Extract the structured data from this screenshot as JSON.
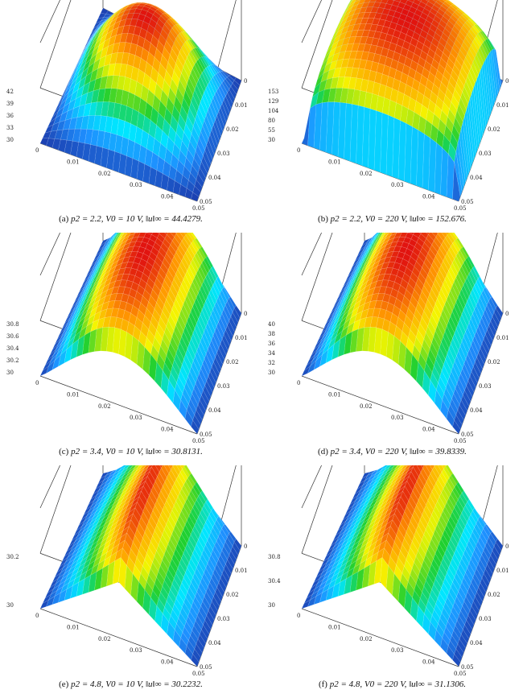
{
  "figure": {
    "panels": [
      {
        "id": "a",
        "caption_prefix": "(a)",
        "caption_math": "p2 = 2.2, V0 = 10 V, ‖u‖∞ = 44.4279.",
        "p2": 2.2,
        "V0_volts": 10,
        "u_inf_norm": 44.4279,
        "shape": "dome",
        "z_ticks": [
          "42",
          "39",
          "36",
          "33",
          "30"
        ],
        "x_ticks": [
          "0",
          "0.01",
          "0.02",
          "0.03",
          "0.04",
          "0.05"
        ],
        "y_ticks": [
          "0",
          "0.01",
          "0.02",
          "0.03",
          "0.04",
          "0.05"
        ]
      },
      {
        "id": "b",
        "caption_prefix": "(b)",
        "caption_math": "p2 = 2.2, V0 = 220 V, ‖u‖∞ = 152.676.",
        "p2": 2.2,
        "V0_volts": 220,
        "u_inf_norm": 152.676,
        "shape": "flat-top",
        "z_ticks": [
          "153",
          "129",
          "104",
          "80",
          "55",
          "30"
        ],
        "x_ticks": [
          "0",
          "0.01",
          "0.02",
          "0.03",
          "0.04",
          "0.05"
        ],
        "y_ticks": [
          "0",
          "0.01",
          "0.02",
          "0.03",
          "0.04",
          "0.05"
        ]
      },
      {
        "id": "c",
        "caption_prefix": "(c)",
        "caption_math": "p2 = 3.4, V0 = 10 V, ‖u‖∞ = 30.8131.",
        "p2": 3.4,
        "V0_volts": 10,
        "u_inf_norm": 30.8131,
        "shape": "ridge",
        "z_ticks": [
          "30.8",
          "30.6",
          "30.4",
          "30.2",
          "30"
        ],
        "x_ticks": [
          "0",
          "0.01",
          "0.02",
          "0.03",
          "0.04",
          "0.05"
        ],
        "y_ticks": [
          "0",
          "0.01",
          "0.02",
          "0.03",
          "0.04",
          "0.05"
        ]
      },
      {
        "id": "d",
        "caption_prefix": "(d)",
        "caption_math": "p2 = 3.4, V0 = 220 V, ‖u‖∞ = 39.8339.",
        "p2": 3.4,
        "V0_volts": 220,
        "u_inf_norm": 39.8339,
        "shape": "ridge",
        "z_ticks": [
          "40",
          "38",
          "36",
          "34",
          "32",
          "30"
        ],
        "x_ticks": [
          "0",
          "0.01",
          "0.02",
          "0.03",
          "0.04",
          "0.05"
        ],
        "y_ticks": [
          "0",
          "0.01",
          "0.02",
          "0.03",
          "0.04",
          "0.05"
        ]
      },
      {
        "id": "e",
        "caption_prefix": "(e)",
        "caption_math": "p2 = 4.8, V0 = 10 V, ‖u‖∞ = 30.2232.",
        "p2": 4.8,
        "V0_volts": 10,
        "u_inf_norm": 30.2232,
        "shape": "tent",
        "z_ticks": [
          "30.2",
          "30"
        ],
        "x_ticks": [
          "0",
          "0.01",
          "0.02",
          "0.03",
          "0.04",
          "0.05"
        ],
        "y_ticks": [
          "0",
          "0.01",
          "0.02",
          "0.03",
          "0.04",
          "0.05"
        ]
      },
      {
        "id": "f",
        "caption_prefix": "(f)",
        "caption_math": "p2 = 4.8, V0 = 220 V, ‖u‖∞ = 31.1306.",
        "p2": 4.8,
        "V0_volts": 220,
        "u_inf_norm": 31.1306,
        "shape": "tent",
        "z_ticks": [
          "30.8",
          "30.4",
          "30"
        ],
        "x_ticks": [
          "0",
          "0.01",
          "0.02",
          "0.03",
          "0.04",
          "0.05"
        ],
        "y_ticks": [
          "0",
          "0.01",
          "0.02",
          "0.03",
          "0.04",
          "0.05"
        ]
      }
    ],
    "colormap": [
      "#1c3fb0",
      "#1e90ff",
      "#00e5ff",
      "#20d030",
      "#f5f500",
      "#ff9900",
      "#e01010"
    ]
  }
}
